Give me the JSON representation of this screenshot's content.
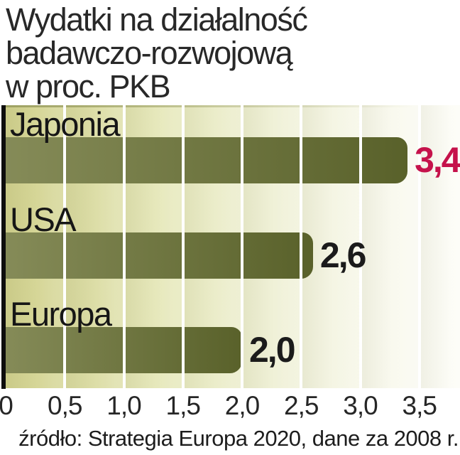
{
  "header": {
    "title": "Wydatki na działalność\nbadawczo-rozwojową\nw proc. PKB"
  },
  "footer": {
    "source": "źródło: Strategia Europa 2020, dane za 2008 r."
  },
  "colors": {
    "bar_gradient_start": "#858b58",
    "bar_gradient_end": "#59612a",
    "background_left": "#d2d28f",
    "background_right": "#fdfdf8",
    "gridline": "#ffffff",
    "axis_line": "#0d0d0d",
    "value_red": "#c5124b",
    "value_black": "#1b1b1b",
    "text": "#282828"
  },
  "chart_data": {
    "type": "bar",
    "orientation": "horizontal",
    "title": "Wydatki na działalność badawczo-rozwojową w proc. PKB",
    "categories": [
      "Japonia",
      "USA",
      "Europa"
    ],
    "values": [
      3.4,
      2.6,
      2.0
    ],
    "value_labels": [
      "3,4",
      "2,6",
      "2,0"
    ],
    "value_label_colors": [
      "#c5124b",
      "#1b1b1b",
      "#1b1b1b"
    ],
    "x_ticks": [
      0,
      0.5,
      1.0,
      1.5,
      2.0,
      2.5,
      3.0,
      3.5
    ],
    "x_tick_labels": [
      "0",
      "0,5",
      "1,0",
      "1,5",
      "2,0",
      "2,5",
      "3,0",
      "3,5"
    ],
    "xlim": [
      0,
      3.85
    ],
    "grid": true,
    "legend": false,
    "source": "źródło: Strategia Europa 2020, dane za 2008 r."
  }
}
